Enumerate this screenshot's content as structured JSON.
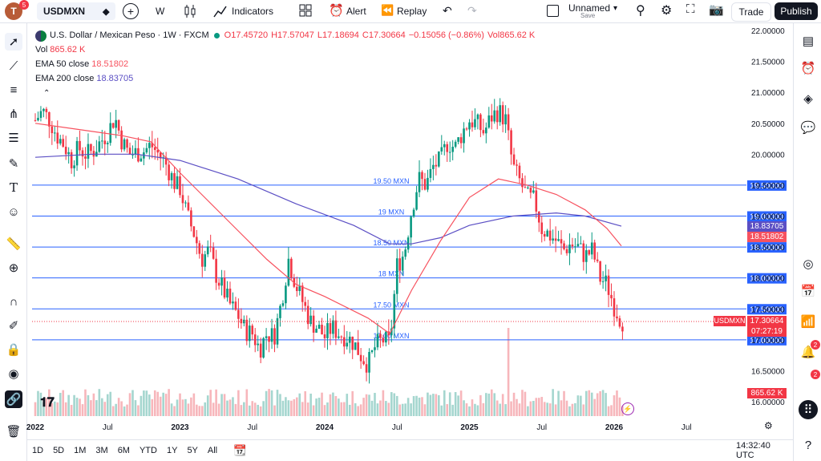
{
  "header": {
    "avatar_letter": "T",
    "notifications": "5",
    "symbol": "USDMXN",
    "interval": "W",
    "indicators_label": "Indicators",
    "alert_label": "Alert",
    "replay_label": "Replay",
    "layout_name": "Unnamed",
    "layout_status": "Save",
    "trade_label": "Trade",
    "publish_label": "Publish"
  },
  "legend": {
    "title": "U.S. Dollar / Mexican Peso · 1W · FXCM",
    "open": "O17.45720",
    "high": "H17.57047",
    "low": "L17.18694",
    "close": "C17.30664",
    "change": "−0.15056 (−0.86%)",
    "vol_inline": "Vol865.62 K",
    "vol_label": "Vol",
    "vol_value": "865.62 K",
    "ema50_label": "EMA 50 close",
    "ema50_value": "18.51802",
    "ema200_label": "EMA 200 close",
    "ema200_value": "18.83705"
  },
  "colors": {
    "up": "#089981",
    "down": "#f23645",
    "ema50": "#f7525f",
    "ema200": "#5b4fc4",
    "hline": "#2962ff",
    "vol_up": "#a5d6cf",
    "vol_down": "#f7b6bb"
  },
  "price_labels": {
    "ema200": "18.83705",
    "ema50": "18.51802",
    "symbol": "USDMXN",
    "last": "17.30664",
    "countdown": "07:27:19",
    "volume": "865.62 K"
  },
  "time_axis": [
    "2022",
    "Jul",
    "2023",
    "Jul",
    "2024",
    "Jul",
    "2025",
    "Jul",
    "2026",
    "Jul"
  ],
  "timeframes": [
    "1D",
    "5D",
    "1M",
    "3M",
    "6M",
    "YTD",
    "1Y",
    "5Y",
    "All"
  ],
  "clock": "14:32:40 UTC",
  "right_badges": {
    "ideas": "2",
    "alerts": "2"
  },
  "chart_data": {
    "type": "candlestick",
    "title": "U.S. Dollar / Mexican Peso · 1W · FXCM",
    "x_labels": [
      "2022",
      "Jul",
      "2023",
      "Jul",
      "2024",
      "Jul",
      "2025",
      "Jul",
      "2026",
      "Jul"
    ],
    "y_ticks": [
      "22.00000",
      "21.50000",
      "21.00000",
      "20.50000",
      "20.00000",
      "19.50000",
      "19.00000",
      "18.50000",
      "18.00000",
      "17.50000",
      "17.00000",
      "16.50000",
      "16.00000"
    ],
    "ylim": [
      16.0,
      22.0
    ],
    "horizontal_levels": [
      {
        "value": 19.5,
        "label": "19.50 MXN",
        "axis_label": "19.50000"
      },
      {
        "value": 19.0,
        "label": "19 MXN",
        "axis_label": "19.00000"
      },
      {
        "value": 18.5,
        "label": "18.50 MXN",
        "axis_label": "18.50000"
      },
      {
        "value": 18.0,
        "label": "18 MXN",
        "axis_label": "18.00000"
      },
      {
        "value": 17.5,
        "label": "17.50 MXN",
        "axis_label": "17.50000"
      },
      {
        "value": 17.0,
        "label": "17.00 MXN",
        "axis_label": "17.00000"
      }
    ],
    "close_path": [
      [
        2022.0,
        20.55
      ],
      [
        2022.05,
        20.7
      ],
      [
        2022.1,
        20.55
      ],
      [
        2022.15,
        20.3
      ],
      [
        2022.2,
        20.15
      ],
      [
        2022.25,
        19.9
      ],
      [
        2022.3,
        20.1
      ],
      [
        2022.35,
        20.0
      ],
      [
        2022.4,
        20.05
      ],
      [
        2022.5,
        20.35
      ],
      [
        2022.55,
        20.6
      ],
      [
        2022.6,
        20.2
      ],
      [
        2022.65,
        20.0
      ],
      [
        2022.75,
        20.05
      ],
      [
        2022.8,
        20.15
      ],
      [
        2022.9,
        19.85
      ],
      [
        2022.97,
        19.5
      ],
      [
        2023.0,
        19.45
      ],
      [
        2023.05,
        19.0
      ],
      [
        2023.1,
        18.7
      ],
      [
        2023.15,
        18.3
      ],
      [
        2023.2,
        18.45
      ],
      [
        2023.25,
        18.05
      ],
      [
        2023.3,
        17.8
      ],
      [
        2023.35,
        17.55
      ],
      [
        2023.4,
        17.4
      ],
      [
        2023.45,
        17.15
      ],
      [
        2023.5,
        17.1
      ],
      [
        2023.55,
        16.85
      ],
      [
        2023.6,
        17.1
      ],
      [
        2023.65,
        17.05
      ],
      [
        2023.7,
        17.6
      ],
      [
        2023.75,
        18.3
      ],
      [
        2023.8,
        17.9
      ],
      [
        2023.85,
        17.6
      ],
      [
        2023.9,
        17.3
      ],
      [
        2023.95,
        17.2
      ],
      [
        2024.0,
        17.05
      ],
      [
        2024.05,
        17.2
      ],
      [
        2024.1,
        17.1
      ],
      [
        2024.15,
        17.05
      ],
      [
        2024.2,
        16.95
      ],
      [
        2024.25,
        16.75
      ],
      [
        2024.3,
        16.6
      ],
      [
        2024.35,
        16.9
      ],
      [
        2024.4,
        17.0
      ],
      [
        2024.45,
        16.95
      ],
      [
        2024.5,
        18.2
      ],
      [
        2024.55,
        18.4
      ],
      [
        2024.6,
        19.1
      ],
      [
        2024.65,
        19.6
      ],
      [
        2024.7,
        19.5
      ],
      [
        2024.75,
        19.8
      ],
      [
        2024.8,
        19.9
      ],
      [
        2024.85,
        20.2
      ],
      [
        2024.9,
        20.1
      ],
      [
        2024.95,
        20.35
      ],
      [
        2025.0,
        20.55
      ],
      [
        2025.05,
        20.5
      ],
      [
        2025.1,
        20.35
      ],
      [
        2025.15,
        20.6
      ],
      [
        2025.2,
        20.7
      ],
      [
        2025.25,
        20.55
      ],
      [
        2025.3,
        19.8
      ],
      [
        2025.35,
        19.55
      ],
      [
        2025.4,
        19.3
      ],
      [
        2025.45,
        19.25
      ],
      [
        2025.5,
        18.8
      ],
      [
        2025.55,
        18.7
      ],
      [
        2025.6,
        18.6
      ],
      [
        2025.65,
        18.45
      ],
      [
        2025.7,
        18.55
      ],
      [
        2025.75,
        18.5
      ],
      [
        2025.8,
        18.35
      ],
      [
        2025.85,
        18.45
      ],
      [
        2025.9,
        18.0
      ],
      [
        2025.95,
        17.9
      ],
      [
        2026.0,
        17.55
      ],
      [
        2026.05,
        17.30664
      ]
    ],
    "ema50_path": [
      [
        2022.0,
        20.5
      ],
      [
        2022.3,
        20.4
      ],
      [
        2022.6,
        20.3
      ],
      [
        2022.8,
        20.2
      ],
      [
        2023.0,
        19.7
      ],
      [
        2023.3,
        19.0
      ],
      [
        2023.6,
        18.3
      ],
      [
        2023.8,
        17.9
      ],
      [
        2024.0,
        17.7
      ],
      [
        2024.3,
        17.35
      ],
      [
        2024.45,
        17.1
      ],
      [
        2024.6,
        17.8
      ],
      [
        2024.8,
        18.6
      ],
      [
        2025.0,
        19.3
      ],
      [
        2025.2,
        19.6
      ],
      [
        2025.4,
        19.5
      ],
      [
        2025.6,
        19.35
      ],
      [
        2025.8,
        19.1
      ],
      [
        2025.95,
        18.8
      ],
      [
        2026.05,
        18.51802
      ]
    ],
    "ema200_path": [
      [
        2022.0,
        19.95
      ],
      [
        2022.4,
        20.0
      ],
      [
        2022.7,
        20.0
      ],
      [
        2023.0,
        19.9
      ],
      [
        2023.4,
        19.6
      ],
      [
        2023.8,
        19.2
      ],
      [
        2024.2,
        18.85
      ],
      [
        2024.45,
        18.55
      ],
      [
        2024.6,
        18.55
      ],
      [
        2024.8,
        18.65
      ],
      [
        2025.0,
        18.85
      ],
      [
        2025.3,
        19.0
      ],
      [
        2025.6,
        19.05
      ],
      [
        2025.8,
        19.0
      ],
      [
        2026.05,
        18.83705
      ]
    ],
    "volume_note": "Vol 865.62 K",
    "volume_spike_x": 2025.27
  }
}
